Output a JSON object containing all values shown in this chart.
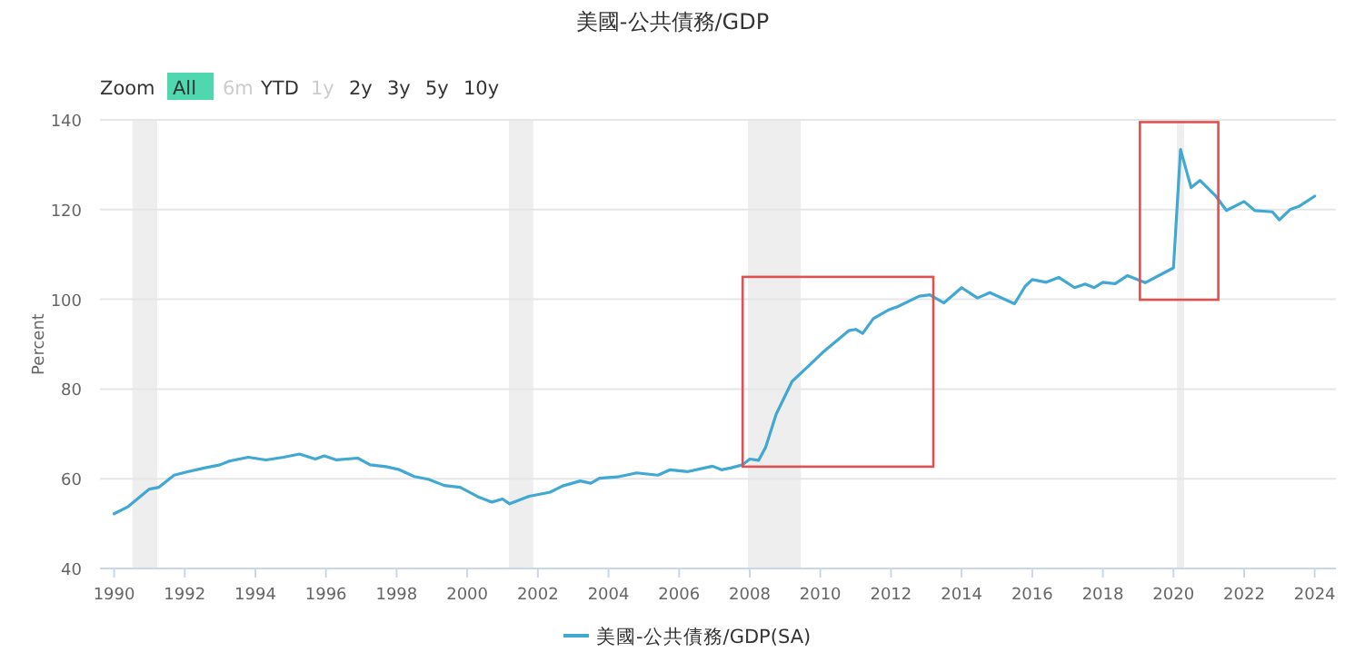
{
  "chart_data": {
    "type": "line",
    "title": "美國-公共債務/GDP",
    "ylabel": "Percent",
    "annotations": [
      "Zoom",
      "All",
      "6m",
      "YTD",
      "1y",
      "2y",
      "3y",
      "5y",
      "10y"
    ],
    "x": [
      1990,
      1990.4,
      1990.75,
      1991,
      1991.27,
      1991.7,
      1992.05,
      1992.55,
      1993,
      1993.25,
      1993.8,
      1994.3,
      1994.8,
      1995.25,
      1995.7,
      1995.95,
      1996.3,
      1996.9,
      1997.25,
      1997.7,
      1998.05,
      1998.5,
      1998.9,
      1999.35,
      1999.8,
      2000.3,
      2000.7,
      2001,
      2001.2,
      2001.75,
      2002.35,
      2002.7,
      2003.2,
      2003.5,
      2003.75,
      2004.25,
      2004.8,
      2005.4,
      2005.75,
      2006.25,
      2006.95,
      2007.2,
      2007.45,
      2007.8,
      2008,
      2008.25,
      2008.45,
      2008.75,
      2009.2,
      2009.65,
      2010.1,
      2010.8,
      2011,
      2011.2,
      2011.5,
      2011.95,
      2012.2,
      2012.8,
      2013.1,
      2013.5,
      2014,
      2014.45,
      2014.8,
      2015.5,
      2015.8,
      2016,
      2016.4,
      2016.75,
      2017.2,
      2017.5,
      2017.75,
      2018,
      2018.35,
      2018.7,
      2019.2,
      2020,
      2020.2,
      2020.5,
      2020.75,
      2021.2,
      2021.5,
      2022,
      2022.3,
      2022.8,
      2023,
      2023.3,
      2023.55,
      2024
    ],
    "series": [
      {
        "name": "美國-公共債務/GDP(SA)",
        "color": "#41a7d3",
        "values": [
          52.2,
          53.8,
          56.1,
          57.7,
          58.1,
          60.8,
          61.5,
          62.4,
          63.1,
          63.9,
          64.8,
          64.2,
          64.8,
          65.5,
          64.4,
          65.1,
          64.2,
          64.6,
          63.1,
          62.7,
          62.1,
          60.5,
          59.9,
          58.5,
          58.1,
          56,
          54.8,
          55.5,
          54.4,
          56.1,
          57,
          58.4,
          59.5,
          59,
          60.1,
          60.4,
          61.3,
          60.8,
          62,
          61.6,
          62.8,
          62,
          62.4,
          63.1,
          64.4,
          64.1,
          67,
          74.4,
          81.7,
          85,
          88.4,
          93,
          93.3,
          92.4,
          95.7,
          97.7,
          98.4,
          100.7,
          101,
          99.2,
          102.6,
          100.3,
          101.5,
          99,
          102.9,
          104.4,
          103.8,
          104.9,
          102.6,
          103.4,
          102.6,
          103.8,
          103.5,
          105.3,
          103.7,
          107,
          133.4,
          124.9,
          126.5,
          123,
          119.8,
          121.8,
          119.8,
          119.5,
          117.7,
          120,
          120.7,
          123
        ]
      }
    ],
    "xlim": [
      1989.6,
      2024.6
    ],
    "xticks": [
      1990,
      1992,
      1994,
      1996,
      1998,
      2000,
      2002,
      2004,
      2006,
      2008,
      2010,
      2012,
      2014,
      2016,
      2018,
      2020,
      2022,
      2024
    ],
    "ylim": [
      40,
      140
    ],
    "yticks": [
      40,
      60,
      80,
      100,
      120,
      140
    ],
    "grid": "y",
    "legend": "bottom",
    "marker": "none",
    "line_style": "solid",
    "bands": [
      {
        "axis": "x",
        "from": 1990.52,
        "to": 1991.22,
        "color": "#eeeeee"
      },
      {
        "axis": "x",
        "from": 2001.18,
        "to": 2001.87,
        "color": "#eeeeee"
      },
      {
        "axis": "x",
        "from": 2007.95,
        "to": 2009.45,
        "color": "#eeeeee"
      },
      {
        "axis": "x",
        "from": 2020.1,
        "to": 2020.3,
        "color": "#eeeeee"
      }
    ]
  }
}
